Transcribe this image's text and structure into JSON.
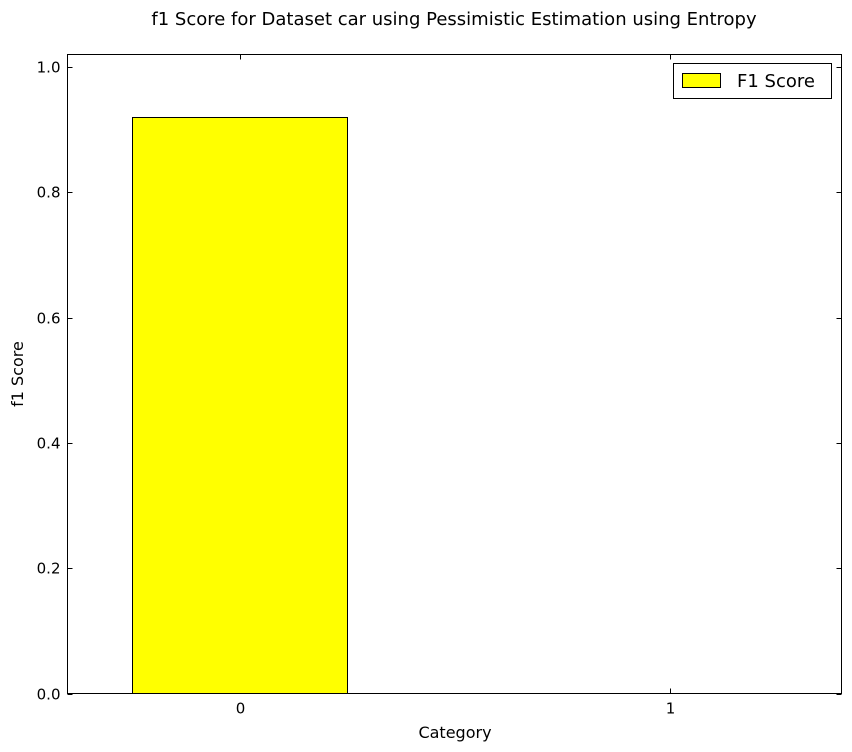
{
  "chart_data": {
    "type": "bar",
    "title": "f1 Score for Dataset car using Pessimistic Estimation using Entropy",
    "xlabel": "Category",
    "ylabel": "f1 Score",
    "categories": [
      "0",
      "1"
    ],
    "series": [
      {
        "name": "F1 Score",
        "values": [
          0.921,
          0.0
        ],
        "color": "#ffff00"
      }
    ],
    "ylim": [
      0.0,
      1.02
    ],
    "yticks": [
      0.0,
      0.2,
      0.4,
      0.6,
      0.8,
      1.0
    ],
    "ytick_labels": [
      "0.0",
      "0.2",
      "0.4",
      "0.6",
      "0.8",
      "1.0"
    ],
    "grid": false,
    "legend": {
      "position": "top-right",
      "entries": [
        "F1 Score"
      ]
    }
  }
}
